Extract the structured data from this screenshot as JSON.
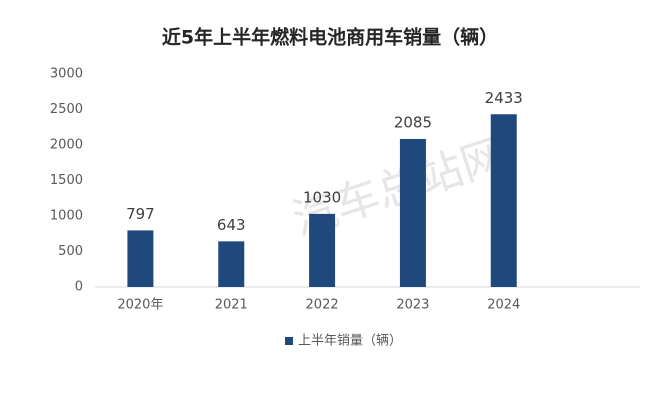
{
  "chart_data": {
    "type": "bar",
    "title": "近5年上半年燃料电池商用车销量（辆）",
    "watermark": "汽车总站网",
    "categories": [
      "2020年",
      "2021",
      "2022",
      "2023",
      "2024",
      null
    ],
    "series": [
      {
        "name": "上半年销量（辆）",
        "color": "#1f497d",
        "values": [
          797,
          643,
          1030,
          2085,
          2433,
          null
        ]
      }
    ],
    "ylim": [
      0,
      3000
    ],
    "yticks": [
      0,
      500,
      1000,
      1500,
      2000,
      2500,
      3000
    ],
    "grid": false,
    "legend": "bottom"
  }
}
